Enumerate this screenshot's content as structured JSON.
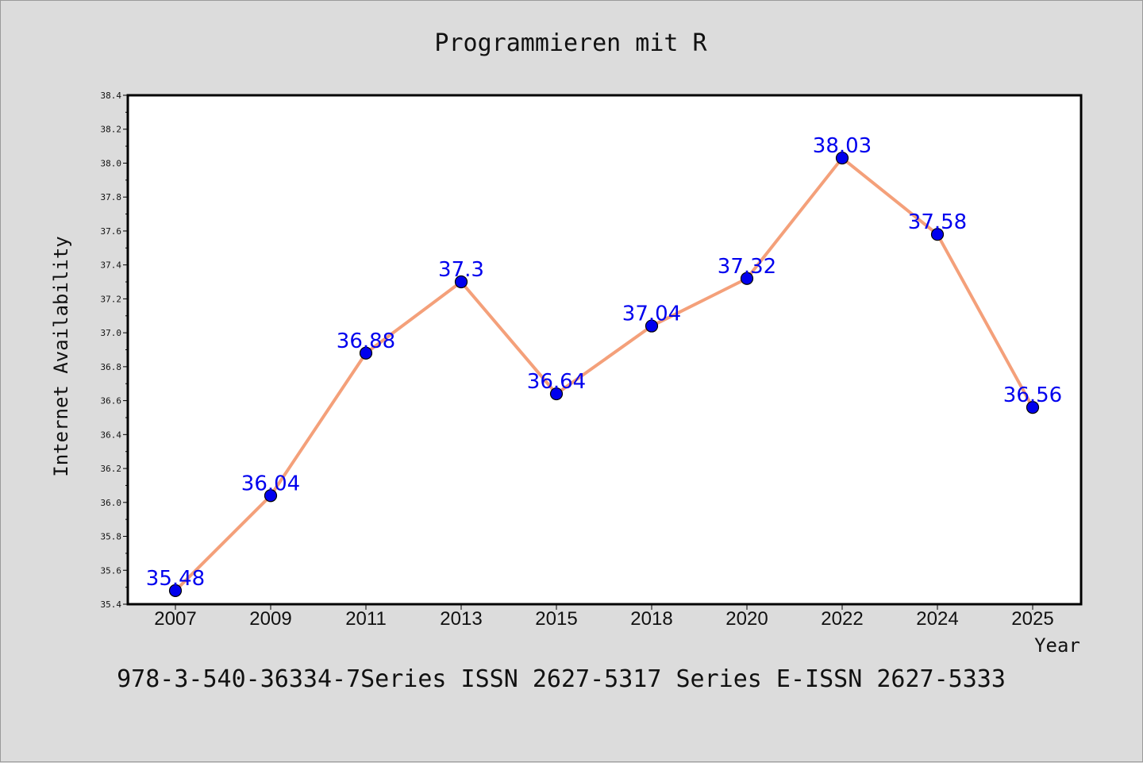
{
  "chart_data": {
    "type": "line",
    "title": "Programmieren mit R",
    "xlabel": "Year",
    "ylabel": "Internet Availability",
    "categories": [
      "2007",
      "2009",
      "2011",
      "2013",
      "2015",
      "2018",
      "2020",
      "2022",
      "2024",
      "2025"
    ],
    "values": [
      35.48,
      36.04,
      36.88,
      37.3,
      36.64,
      37.04,
      37.32,
      38.03,
      37.58,
      36.56
    ],
    "data_labels": [
      "35.48",
      "36.04",
      "36.88",
      "37.3",
      "36.64",
      "37.04",
      "37.32",
      "38.03",
      "37.58",
      "36.56"
    ],
    "ylim": [
      35.4,
      38.4
    ],
    "yticks": [
      "35.4",
      "35.6",
      "35.8",
      "36.0",
      "36.2",
      "36.4",
      "36.6",
      "36.8",
      "37.0",
      "37.2",
      "37.4",
      "37.6",
      "37.8",
      "38.0",
      "38.2",
      "38.4"
    ],
    "grid": false,
    "line_color": "#f4a07a",
    "marker_color": "#0000ee",
    "label_color": "#0000ee",
    "footer": "978-3-540-36334-7Series ISSN 2627-5317 Series E-ISSN 2627-5333"
  }
}
